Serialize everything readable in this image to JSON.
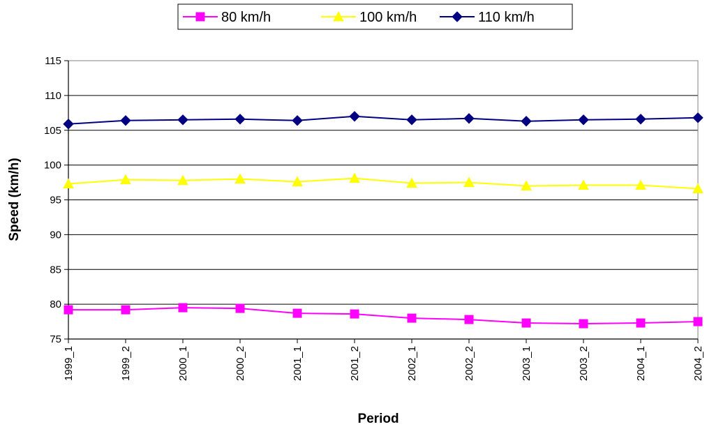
{
  "chart_data": {
    "type": "line",
    "title": "",
    "xlabel": "Period",
    "ylabel": "Speed (km/h)",
    "ylim": [
      75,
      115
    ],
    "yticks": [
      75,
      80,
      85,
      90,
      95,
      100,
      105,
      110,
      115
    ],
    "grid": "horizontal",
    "legend_position": "top",
    "categories": [
      "1999_1",
      "1999_2",
      "2000_1",
      "2000_2",
      "2001_1",
      "2001_2",
      "2002_1",
      "2002_2",
      "2003_1",
      "2003_2",
      "2004_1",
      "2004_2"
    ],
    "series": [
      {
        "name": "80 km/h",
        "color": "#ff00ff",
        "marker": "square",
        "values": [
          79.2,
          79.2,
          79.5,
          79.4,
          78.7,
          78.6,
          78.0,
          77.8,
          77.3,
          77.2,
          77.3,
          77.5
        ]
      },
      {
        "name": "100 km/h",
        "color": "#ffff00",
        "marker": "triangle",
        "values": [
          97.3,
          97.9,
          97.8,
          98.0,
          97.6,
          98.1,
          97.4,
          97.5,
          97.0,
          97.1,
          97.1,
          96.6
        ]
      },
      {
        "name": "110 km/h",
        "color": "#000080",
        "marker": "diamond",
        "values": [
          105.9,
          106.4,
          106.5,
          106.6,
          106.4,
          107.0,
          106.5,
          106.7,
          106.3,
          106.5,
          106.6,
          106.8
        ]
      }
    ]
  }
}
